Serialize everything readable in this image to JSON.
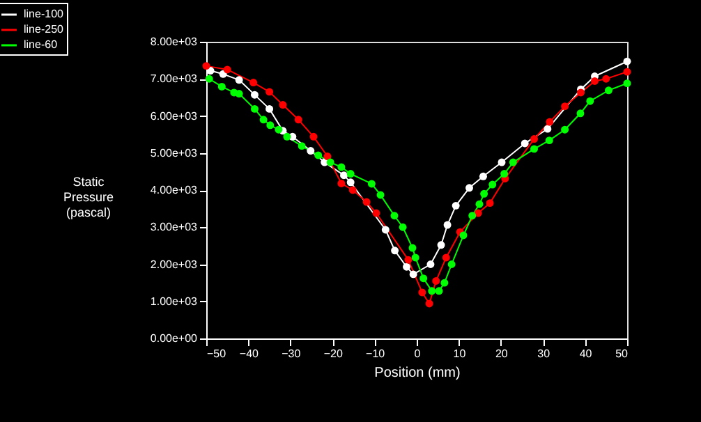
{
  "chart_data": {
    "type": "line",
    "xlabel": "Position (mm)",
    "ylabel": "Static Pressure (pascal)",
    "xlim": [
      -50,
      50
    ],
    "xticks": [
      -50,
      -40,
      -30,
      -20,
      -10,
      0,
      10,
      20,
      30,
      40,
      50
    ],
    "ylim": [
      0,
      8000
    ],
    "yticks": [
      {
        "value": 0,
        "label": "0.00e+00"
      },
      {
        "value": 1000,
        "label": "1.00e+03"
      },
      {
        "value": 2000,
        "label": "2.00e+03"
      },
      {
        "value": 3000,
        "label": "3.00e+03"
      },
      {
        "value": 4000,
        "label": "4.00e+03"
      },
      {
        "value": 5000,
        "label": "5.00e+03"
      },
      {
        "value": 6000,
        "label": "6.00e+03"
      },
      {
        "value": 7000,
        "label": "7.00e+03"
      },
      {
        "value": 8000,
        "label": "8.00e+03"
      }
    ],
    "grid": false,
    "legend": "top left",
    "marker": "circle",
    "line_style": "solid",
    "series": [
      {
        "name": "line-100",
        "color": "#ffffff",
        "x": [
          -49,
          -46,
          -42.2,
          -38.5,
          -35,
          -31.8,
          -29.5,
          -25.2,
          -21.9,
          -17.3,
          -15.7,
          -7.4,
          -5.2,
          -2.4,
          -0.8,
          3.3,
          5.8,
          7.3,
          9.3,
          12.5,
          15.8,
          20.2,
          25.7,
          31.1,
          39,
          42.3,
          50
        ],
        "values": [
          7220,
          7130,
          6970,
          6570,
          6190,
          5600,
          5440,
          5060,
          4750,
          4400,
          4210,
          2930,
          2370,
          1930,
          1730,
          2000,
          2520,
          3060,
          3580,
          4060,
          4370,
          4750,
          5260,
          5650,
          6720,
          7070,
          7470
        ]
      },
      {
        "name": "line-250",
        "color": "#ff0000",
        "x": [
          -50,
          -45,
          -38.8,
          -35,
          -31.8,
          -28.1,
          -24.5,
          -21.2,
          -17.9,
          -15.2,
          -11.9,
          -9.6,
          -2,
          1.3,
          3,
          4.6,
          7,
          10.3,
          14.6,
          17.4,
          21,
          27.9,
          31.6,
          35.2,
          39,
          42.3,
          45,
          50
        ],
        "values": [
          7350,
          7250,
          6900,
          6650,
          6300,
          5900,
          5440,
          4910,
          4180,
          4000,
          3680,
          3380,
          2120,
          1240,
          940,
          1550,
          2180,
          2870,
          3380,
          3650,
          4310,
          5380,
          5840,
          6260,
          6630,
          6940,
          7000,
          7190
        ]
      },
      {
        "name": "line-60",
        "color": "#00ff00",
        "x": [
          -49.3,
          -46.3,
          -43.4,
          -42.2,
          -38.5,
          -36.4,
          -34.8,
          -32.8,
          -30.8,
          -27.3,
          -23.4,
          -20.5,
          -17.9,
          -15.7,
          -10.7,
          -8.6,
          -5.3,
          -3.3,
          -1,
          -0.3,
          1.6,
          3.6,
          5.3,
          6.6,
          8.3,
          11.1,
          13.2,
          14.9,
          16,
          18,
          20.8,
          22.9,
          27.9,
          31.5,
          35.2,
          38.9,
          41.2,
          45.6,
          50
        ],
        "values": [
          7000,
          6790,
          6630,
          6600,
          6190,
          5900,
          5750,
          5630,
          5440,
          5190,
          4940,
          4750,
          4620,
          4440,
          4170,
          3870,
          3310,
          3000,
          2440,
          2180,
          1620,
          1280,
          1280,
          1500,
          2000,
          2780,
          3310,
          3620,
          3900,
          4150,
          4440,
          4750,
          5110,
          5340,
          5630,
          6070,
          6400,
          6690,
          6880
        ]
      }
    ]
  }
}
